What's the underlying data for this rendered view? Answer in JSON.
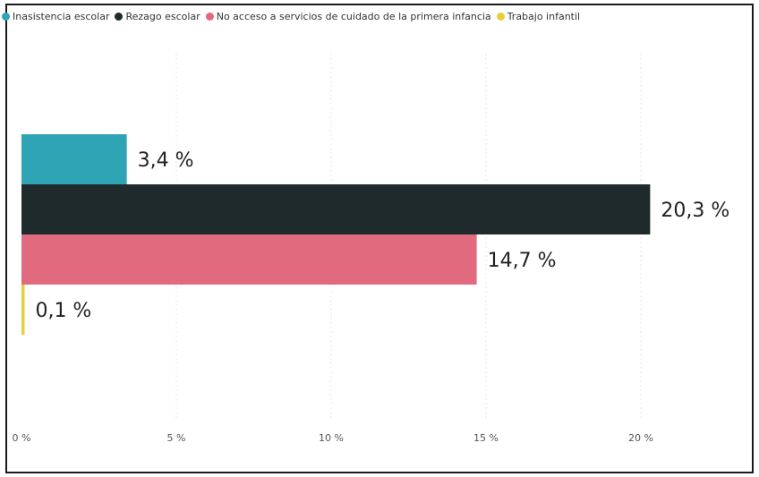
{
  "chart_data": {
    "type": "bar",
    "orientation": "horizontal",
    "title": "",
    "xlabel": "",
    "ylabel": "",
    "xlim": [
      0,
      20
    ],
    "xticks": [
      0,
      5,
      10,
      15,
      20
    ],
    "xtick_labels": [
      "0 %",
      "5 %",
      "10 %",
      "15 %",
      "20 %"
    ],
    "grid": true,
    "legend_position": "top-left",
    "series": [
      {
        "name": "Inasistencia escolar",
        "value": 3.4,
        "label": "3,4 %",
        "color": "#2fa4b5"
      },
      {
        "name": "Rezago escolar",
        "value": 20.3,
        "label": "20,3 %",
        "color": "#1e2a2b"
      },
      {
        "name": "No acceso a servicios de cuidado de la primera infancia",
        "value": 14.7,
        "label": "14,7 %",
        "color": "#e26a7e"
      },
      {
        "name": "Trabajo infantil",
        "value": 0.1,
        "label": "0,1 %",
        "color": "#e8cf3a"
      }
    ]
  }
}
